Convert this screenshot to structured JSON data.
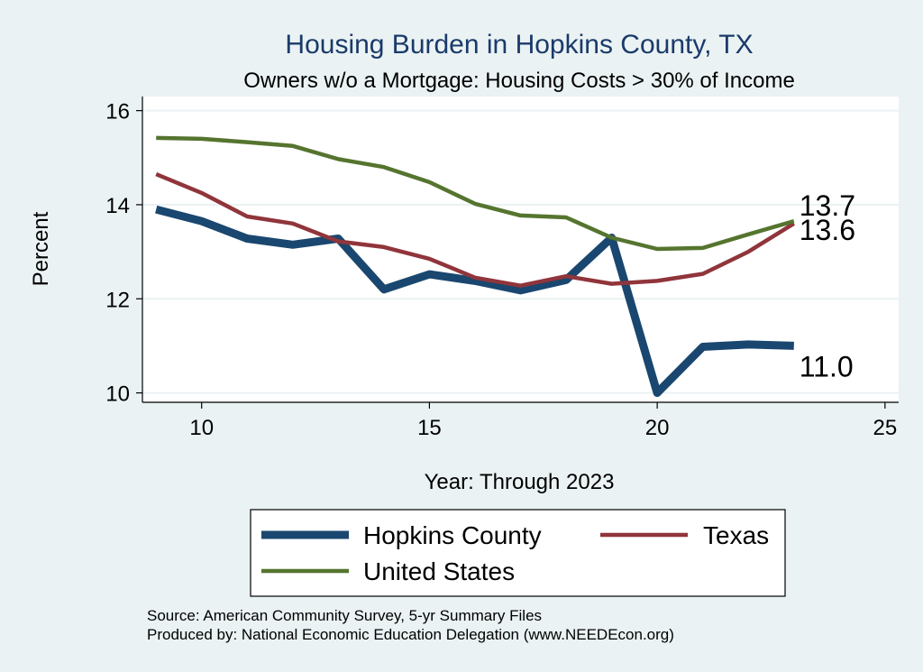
{
  "chart_data": {
    "type": "line",
    "title": "Housing Burden in Hopkins County, TX",
    "subtitle": "Owners w/o a Mortgage: Housing Costs > 30% of Income",
    "xlabel": "Year: Through 2023",
    "ylabel": "Percent",
    "xlim": [
      8.7,
      25.3
    ],
    "ylim": [
      9.8,
      16.3
    ],
    "xticks": [
      10,
      15,
      20,
      25
    ],
    "yticks": [
      10,
      12,
      14,
      16
    ],
    "grid": "horizontal",
    "legend_position": "bottom",
    "x": [
      9,
      10,
      11,
      12,
      13,
      14,
      15,
      16,
      17,
      18,
      19,
      20,
      21,
      22,
      23
    ],
    "series": [
      {
        "name": "Hopkins County",
        "color": "#1a476f",
        "line_width": "thick",
        "values": [
          13.9,
          13.65,
          13.28,
          13.15,
          13.28,
          12.2,
          12.52,
          12.38,
          12.18,
          12.4,
          13.3,
          10.0,
          10.98,
          11.03,
          11.0
        ],
        "end_label": "11.0"
      },
      {
        "name": "Texas",
        "color": "#90353b",
        "line_width": "medium",
        "values": [
          14.65,
          14.25,
          13.75,
          13.6,
          13.22,
          13.1,
          12.85,
          12.45,
          12.28,
          12.48,
          12.32,
          12.38,
          12.53,
          13.0,
          13.6
        ],
        "end_label": "13.6"
      },
      {
        "name": "United States",
        "color": "#55752f",
        "line_width": "medium",
        "values": [
          15.42,
          15.4,
          15.33,
          15.25,
          14.97,
          14.8,
          14.48,
          14.02,
          13.77,
          13.73,
          13.3,
          13.06,
          13.08,
          13.37,
          13.65
        ],
        "end_label": "13.7"
      }
    ]
  },
  "footer": {
    "source": "Source: American Community Survey, 5-yr Summary Files",
    "produced_by": "Produced by: National Economic Education Delegation (www.NEEDEcon.org)"
  }
}
